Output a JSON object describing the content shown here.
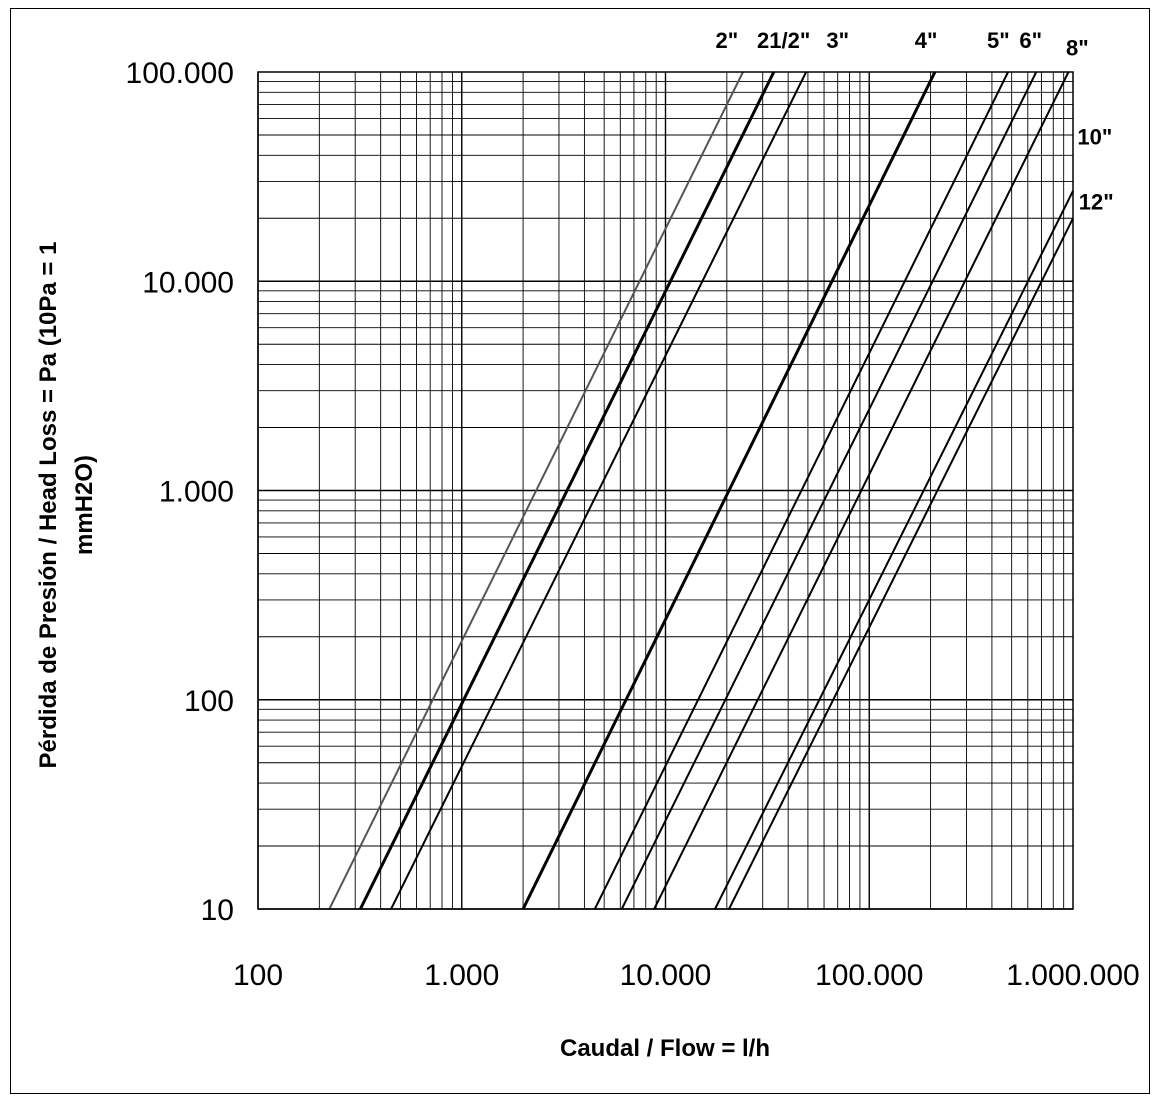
{
  "chart_data": {
    "type": "line",
    "xlabel": "Caudal / Flow = l/h",
    "ylabel_line1": "Pérdida de Presión / Head Loss = Pa (10Pa = 1",
    "ylabel_line2": "mmH2O)",
    "x_scale": "log",
    "y_scale": "log",
    "xlim": [
      100,
      1000000
    ],
    "ylim": [
      10,
      100000
    ],
    "x_ticks": [
      {
        "value": 100,
        "label": "100"
      },
      {
        "value": 1000,
        "label": "1.000"
      },
      {
        "value": 10000,
        "label": "10.000"
      },
      {
        "value": 100000,
        "label": "100.000"
      },
      {
        "value": 1000000,
        "label": "1.000.000"
      }
    ],
    "y_ticks": [
      {
        "value": 10,
        "label": "10"
      },
      {
        "value": 100,
        "label": "100"
      },
      {
        "value": 1000,
        "label": "1.000"
      },
      {
        "value": 10000,
        "label": "10.000"
      },
      {
        "value": 100000,
        "label": "100.000"
      }
    ],
    "grid": true,
    "series": [
      {
        "name": "2\"",
        "color": "#555555",
        "points": [
          [
            224,
            10
          ],
          [
            24000,
            100000
          ]
        ]
      },
      {
        "name": "",
        "color": "#000000",
        "points": [
          [
            318,
            10
          ],
          [
            34000,
            100000
          ]
        ]
      },
      {
        "name": "21/2\"",
        "color": "#000000",
        "points": [
          [
            450,
            10
          ],
          [
            49000,
            100000
          ]
        ]
      },
      {
        "name": "",
        "color": "#000000",
        "points": [
          [
            2000,
            10
          ],
          [
            210000,
            100000
          ]
        ]
      },
      {
        "name": "3\"",
        "color": "#000000",
        "points": [
          [
            4500,
            10
          ],
          [
            480000,
            100000
          ]
        ]
      },
      {
        "name": "4\"",
        "color": "#000000",
        "points": [
          [
            6100,
            10
          ],
          [
            660000,
            100000
          ]
        ]
      },
      {
        "name": "5\"",
        "color": "#000000",
        "points": [
          [
            8800,
            10
          ],
          [
            950000,
            100000
          ]
        ]
      },
      {
        "name": "6\"",
        "color": "#000000",
        "points": [
          [
            17500,
            10
          ],
          [
            1000000,
            27000
          ]
        ]
      },
      {
        "name": "8\"",
        "color": "#000000",
        "points": [
          [
            20500,
            10
          ],
          [
            1000000,
            20000
          ]
        ]
      }
    ],
    "legend_labels": [
      {
        "text": "2\"",
        "x": 20000,
        "y": 130000
      },
      {
        "text": "21/2\"",
        "x": 38000,
        "y": 130000
      },
      {
        "text": "3\"",
        "x": 70000,
        "y": 130000
      },
      {
        "text": "4\"",
        "x": 190000,
        "y": 130000
      },
      {
        "text": "5\"",
        "x": 430000,
        "y": 130000
      },
      {
        "text": "6\"",
        "x": 620000,
        "y": 130000
      },
      {
        "text": "8\"",
        "x": 1050000,
        "y": 120000
      },
      {
        "text": "10\"",
        "x": 1280000,
        "y": 45000
      },
      {
        "text": "12\"",
        "x": 1300000,
        "y": 22000
      }
    ]
  }
}
